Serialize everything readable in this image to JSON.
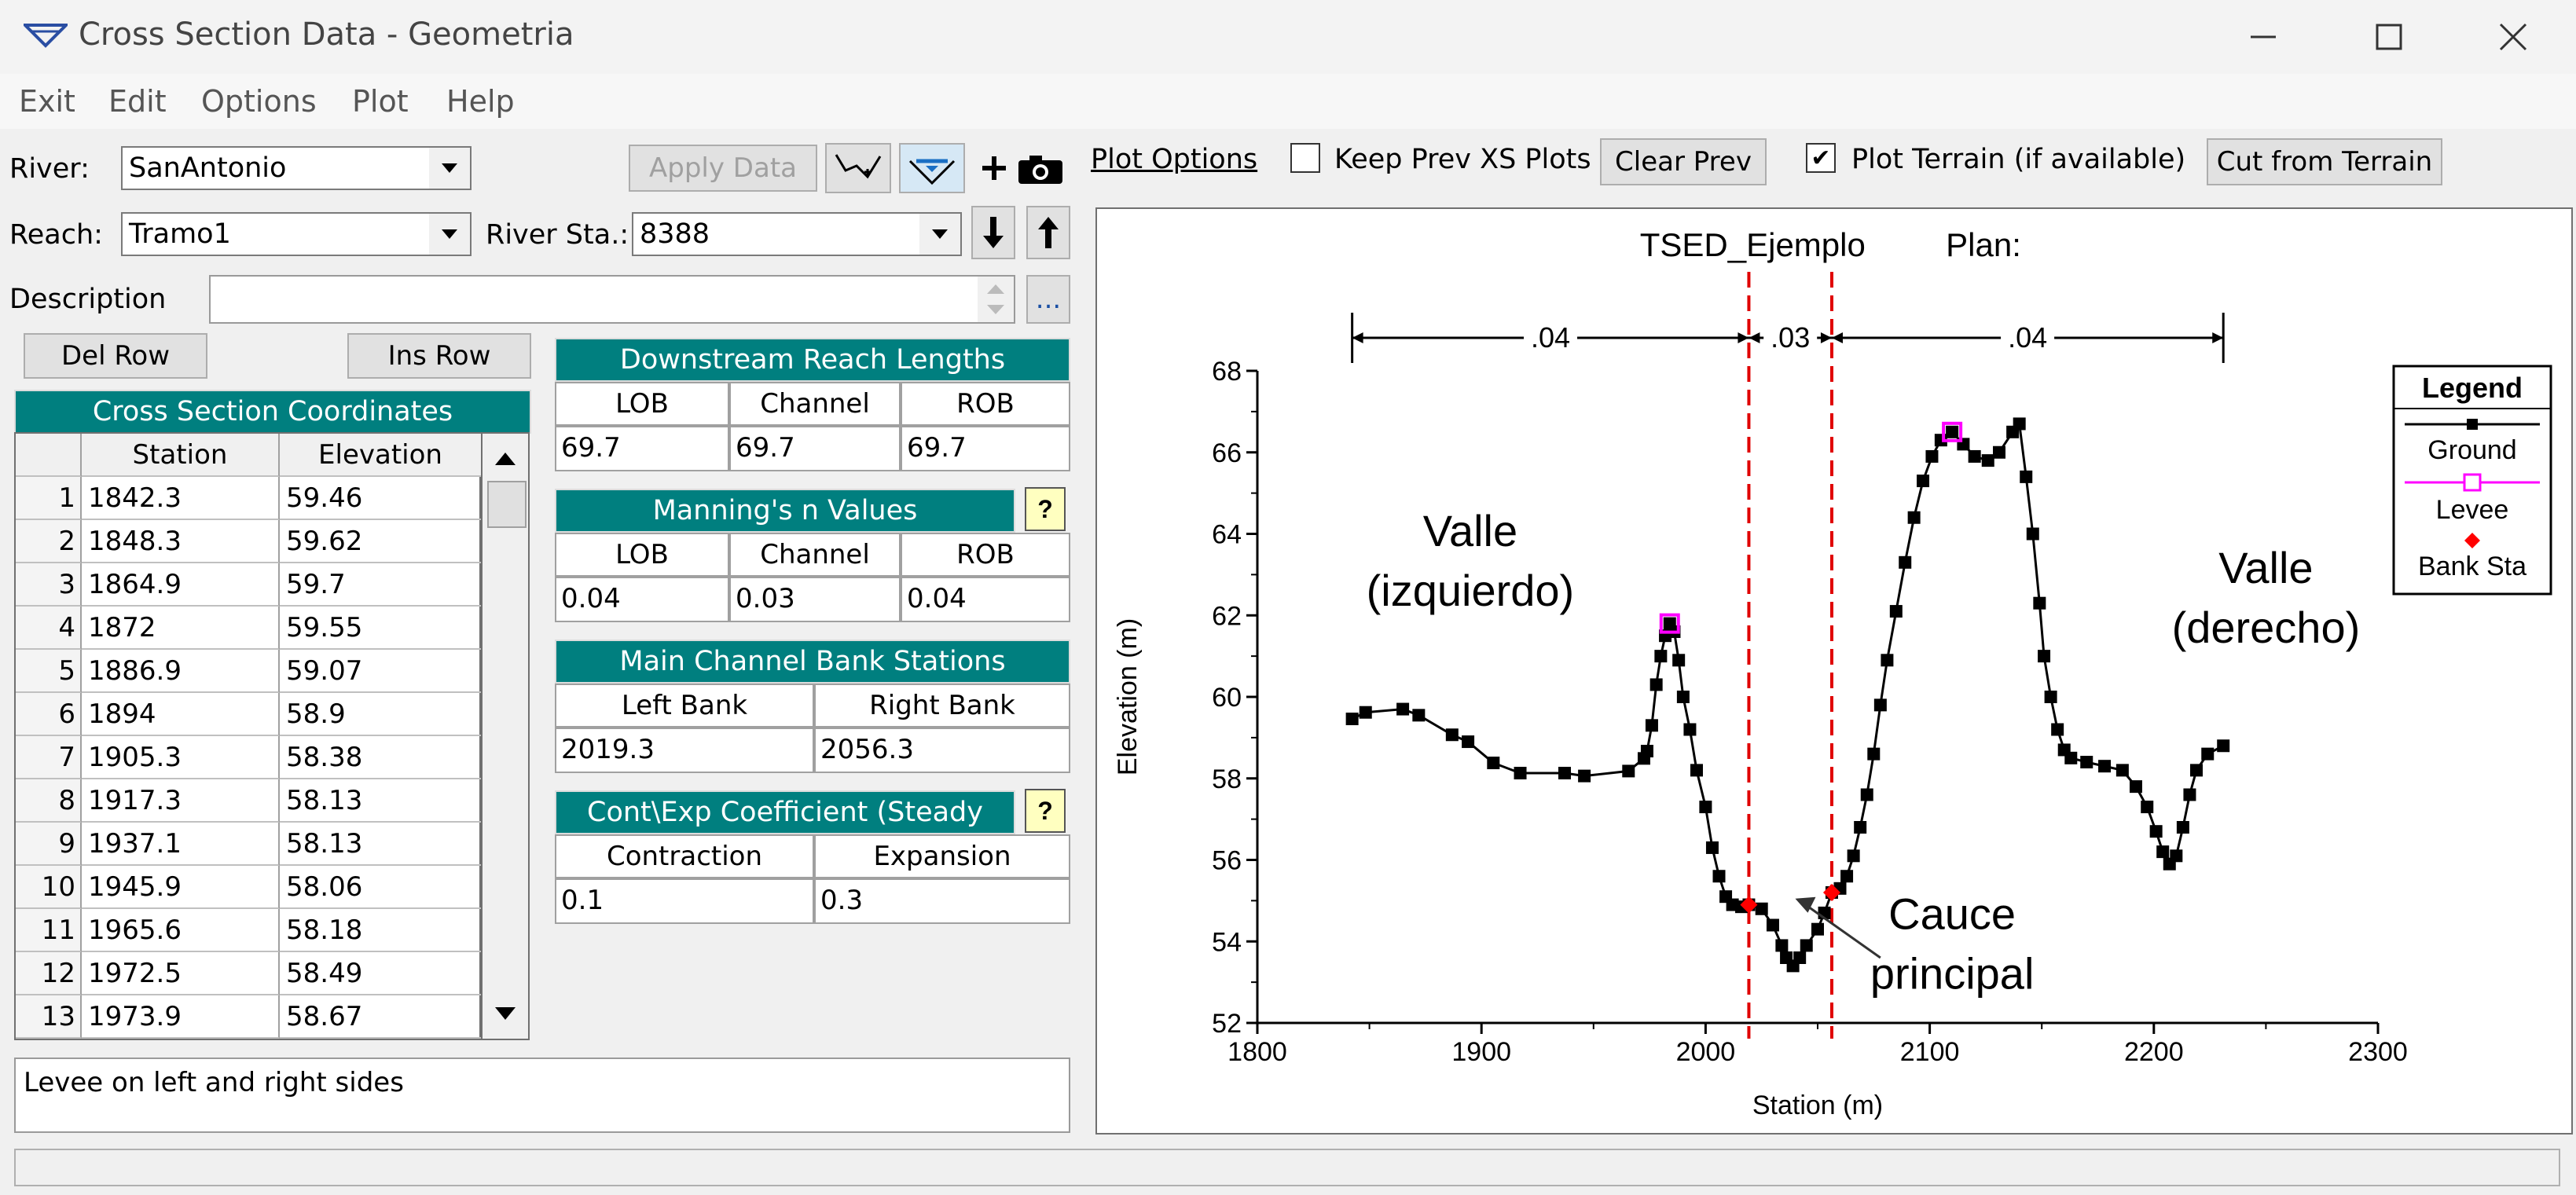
{
  "window": {
    "title": "Cross Section Data - Geometria"
  },
  "menu": [
    "Exit",
    "Edit",
    "Options",
    "Plot",
    "Help"
  ],
  "river": {
    "label": "River:",
    "value": "SanAntonio"
  },
  "reach": {
    "label": "Reach:",
    "value": "Tramo1"
  },
  "river_sta": {
    "label": "River Sta.:",
    "value": "8388"
  },
  "description": {
    "label": "Description",
    "value": "",
    "ellipsis": "..."
  },
  "buttons": {
    "apply_data": "Apply Data",
    "del_row": "Del Row",
    "ins_row": "Ins Row",
    "clear_prev": "Clear Prev",
    "cut_terrain": "Cut from Terrain"
  },
  "plot_options": {
    "link": "Plot Options",
    "keep_prev_label": "Keep Prev XS Plots",
    "keep_prev_checked": false,
    "plot_terrain_label": "Plot Terrain (if available)",
    "plot_terrain_checked": true
  },
  "xs_table": {
    "title": "Cross Section Coordinates",
    "headers": [
      "Station",
      "Elevation"
    ],
    "rows": [
      [
        "1",
        "1842.3",
        "59.46"
      ],
      [
        "2",
        "1848.3",
        "59.62"
      ],
      [
        "3",
        "1864.9",
        "59.7"
      ],
      [
        "4",
        "1872",
        "59.55"
      ],
      [
        "5",
        "1886.9",
        "59.07"
      ],
      [
        "6",
        "1894",
        "58.9"
      ],
      [
        "7",
        "1905.3",
        "58.38"
      ],
      [
        "8",
        "1917.3",
        "58.13"
      ],
      [
        "9",
        "1937.1",
        "58.13"
      ],
      [
        "10",
        "1945.9",
        "58.06"
      ],
      [
        "11",
        "1965.6",
        "58.18"
      ],
      [
        "12",
        "1972.5",
        "58.49"
      ],
      [
        "13",
        "1973.9",
        "58.67"
      ]
    ]
  },
  "reach_lengths": {
    "title": "Downstream Reach Lengths",
    "headers": [
      "LOB",
      "Channel",
      "ROB"
    ],
    "values": [
      "69.7",
      "69.7",
      "69.7"
    ]
  },
  "mannings": {
    "title": "Manning's n Values",
    "headers": [
      "LOB",
      "Channel",
      "ROB"
    ],
    "values": [
      "0.04",
      "0.03",
      "0.04"
    ],
    "help": "?"
  },
  "bank_stations": {
    "title": "Main Channel Bank Stations",
    "headers": [
      "Left Bank",
      "Right Bank"
    ],
    "values": [
      "2019.3",
      "2056.3"
    ]
  },
  "coefficients": {
    "title": "Cont\\Exp Coefficient (Steady",
    "headers": [
      "Contraction",
      "Expansion"
    ],
    "values": [
      "0.1",
      "0.3"
    ],
    "help": "?"
  },
  "notes": "Levee on left and right sides",
  "chart_data": {
    "type": "line",
    "title": "TSED_Ejemplo",
    "plan_label": "Plan:",
    "xlabel": "Station (m)",
    "ylabel": "Elevation (m)",
    "xlim": [
      1800,
      2300
    ],
    "ylim": [
      52,
      68
    ],
    "xticks": [
      1800,
      1900,
      2000,
      2100,
      2200,
      2300
    ],
    "yticks": [
      52,
      54,
      56,
      58,
      60,
      62,
      64,
      66,
      68
    ],
    "series": [
      {
        "name": "Ground",
        "color": "#000000",
        "points": [
          [
            1842.3,
            59.46
          ],
          [
            1848.3,
            59.62
          ],
          [
            1864.9,
            59.7
          ],
          [
            1872,
            59.55
          ],
          [
            1886.9,
            59.07
          ],
          [
            1894,
            58.9
          ],
          [
            1905.3,
            58.38
          ],
          [
            1917.3,
            58.13
          ],
          [
            1937.1,
            58.13
          ],
          [
            1945.9,
            58.06
          ],
          [
            1965.6,
            58.18
          ],
          [
            1972.5,
            58.49
          ],
          [
            1973.9,
            58.67
          ],
          [
            1976,
            59.3
          ],
          [
            1978,
            60.3
          ],
          [
            1980,
            61.0
          ],
          [
            1982,
            61.5
          ],
          [
            1984,
            61.8
          ],
          [
            1986,
            61.6
          ],
          [
            1988,
            60.9
          ],
          [
            1990,
            60.0
          ],
          [
            1993,
            59.2
          ],
          [
            1996,
            58.2
          ],
          [
            2000,
            57.3
          ],
          [
            2003,
            56.3
          ],
          [
            2006,
            55.6
          ],
          [
            2009,
            55.1
          ],
          [
            2012,
            54.9
          ],
          [
            2016,
            54.85
          ],
          [
            2019.3,
            54.9
          ],
          [
            2025,
            54.8
          ],
          [
            2030,
            54.4
          ],
          [
            2034,
            53.9
          ],
          [
            2036,
            53.6
          ],
          [
            2039,
            53.4
          ],
          [
            2042,
            53.6
          ],
          [
            2045,
            53.9
          ],
          [
            2050,
            54.3
          ],
          [
            2053,
            54.7
          ],
          [
            2056.3,
            55.2
          ],
          [
            2060,
            55.3
          ],
          [
            2063,
            55.6
          ],
          [
            2066,
            56.1
          ],
          [
            2069,
            56.8
          ],
          [
            2072,
            57.6
          ],
          [
            2075,
            58.6
          ],
          [
            2078,
            59.8
          ],
          [
            2081,
            60.9
          ],
          [
            2085,
            62.1
          ],
          [
            2089,
            63.3
          ],
          [
            2093,
            64.4
          ],
          [
            2097,
            65.3
          ],
          [
            2101,
            65.9
          ],
          [
            2105,
            66.3
          ],
          [
            2110,
            66.5
          ],
          [
            2115,
            66.2
          ],
          [
            2120,
            65.9
          ],
          [
            2126,
            65.8
          ],
          [
            2131,
            66.0
          ],
          [
            2137,
            66.5
          ],
          [
            2140,
            66.7
          ],
          [
            2143,
            65.4
          ],
          [
            2146,
            64.0
          ],
          [
            2149,
            62.3
          ],
          [
            2151,
            61.0
          ],
          [
            2154,
            60.0
          ],
          [
            2157,
            59.2
          ],
          [
            2160,
            58.7
          ],
          [
            2163,
            58.5
          ],
          [
            2170,
            58.4
          ],
          [
            2178,
            58.3
          ],
          [
            2186,
            58.2
          ],
          [
            2192,
            57.8
          ],
          [
            2197,
            57.3
          ],
          [
            2201,
            56.7
          ],
          [
            2204,
            56.2
          ],
          [
            2207,
            55.9
          ],
          [
            2210,
            56.1
          ],
          [
            2213,
            56.8
          ],
          [
            2216,
            57.6
          ],
          [
            2219,
            58.2
          ],
          [
            2224,
            58.6
          ],
          [
            2231,
            58.8
          ]
        ]
      },
      {
        "name": "Levee",
        "color": "#ff00ff",
        "points": [
          [
            1984,
            61.8
          ],
          [
            2110,
            66.5
          ]
        ]
      },
      {
        "name": "Bank Sta",
        "color": "#ff0000",
        "points": [
          [
            2019.3,
            54.9
          ],
          [
            2056.3,
            55.2
          ]
        ]
      }
    ],
    "n_values": [
      {
        "from": 1842.3,
        "to": 2019.3,
        "label": ".04"
      },
      {
        "from": 2019.3,
        "to": 2056.3,
        "label": ".03"
      },
      {
        "from": 2056.3,
        "to": 2231,
        "label": ".04"
      }
    ],
    "annotations": [
      {
        "lines": [
          "Valle",
          "(izquierdo)"
        ]
      },
      {
        "lines": [
          "Valle",
          "(derecho)"
        ]
      },
      {
        "lines": [
          "Cauce",
          "principal"
        ]
      }
    ],
    "legend": {
      "title": "Legend",
      "items": [
        "Ground",
        "Levee",
        "Bank Sta"
      ],
      "placement": "top-right"
    }
  }
}
